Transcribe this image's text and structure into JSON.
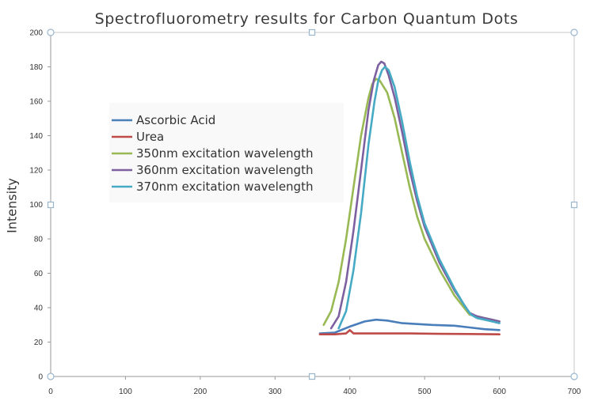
{
  "chart_data": {
    "type": "line",
    "title": "Spectrofluorometry results for Carbon Quantum Dots",
    "xlabel": "",
    "ylabel": "Intensity",
    "xlim": [
      0,
      700
    ],
    "ylim": [
      0,
      200
    ],
    "x_ticks": [
      0,
      100,
      200,
      300,
      400,
      500,
      600,
      700
    ],
    "y_ticks": [
      0,
      20,
      40,
      60,
      80,
      100,
      120,
      140,
      160,
      180,
      200
    ],
    "grid": false,
    "legend_position": "upper-left",
    "series": [
      {
        "name": "Ascorbic Acid",
        "color": "#4a7ebb",
        "points": [
          [
            360,
            25
          ],
          [
            380,
            25.5
          ],
          [
            400,
            29
          ],
          [
            420,
            32
          ],
          [
            435,
            33
          ],
          [
            450,
            32.5
          ],
          [
            470,
            31
          ],
          [
            490,
            30.5
          ],
          [
            510,
            30
          ],
          [
            540,
            29.5
          ],
          [
            560,
            28.5
          ],
          [
            580,
            27.5
          ],
          [
            600,
            27
          ]
        ]
      },
      {
        "name": "Urea",
        "color": "#be4b48",
        "points": [
          [
            360,
            24.5
          ],
          [
            380,
            24.5
          ],
          [
            395,
            25
          ],
          [
            400,
            27
          ],
          [
            405,
            25
          ],
          [
            420,
            25
          ],
          [
            450,
            25
          ],
          [
            480,
            25
          ],
          [
            520,
            24.8
          ],
          [
            560,
            24.7
          ],
          [
            600,
            24.5
          ]
        ]
      },
      {
        "name": "350nm excitation wavelength",
        "color": "#98b954",
        "points": [
          [
            365,
            30
          ],
          [
            375,
            38
          ],
          [
            385,
            55
          ],
          [
            395,
            80
          ],
          [
            405,
            110
          ],
          [
            415,
            140
          ],
          [
            425,
            162
          ],
          [
            430,
            170
          ],
          [
            435,
            173
          ],
          [
            440,
            172
          ],
          [
            450,
            165
          ],
          [
            460,
            150
          ],
          [
            470,
            130
          ],
          [
            480,
            110
          ],
          [
            490,
            93
          ],
          [
            500,
            80
          ],
          [
            520,
            62
          ],
          [
            540,
            47
          ],
          [
            560,
            36
          ],
          [
            570,
            35
          ],
          [
            580,
            34
          ],
          [
            590,
            33
          ],
          [
            600,
            32
          ]
        ]
      },
      {
        "name": "360nm excitation wavelength",
        "color": "#7d60a0",
        "points": [
          [
            375,
            28
          ],
          [
            385,
            35
          ],
          [
            395,
            55
          ],
          [
            405,
            85
          ],
          [
            415,
            120
          ],
          [
            425,
            155
          ],
          [
            432,
            172
          ],
          [
            438,
            181
          ],
          [
            442,
            183
          ],
          [
            446,
            182
          ],
          [
            452,
            175
          ],
          [
            460,
            162
          ],
          [
            470,
            142
          ],
          [
            480,
            120
          ],
          [
            490,
            102
          ],
          [
            500,
            87
          ],
          [
            520,
            66
          ],
          [
            540,
            50
          ],
          [
            560,
            37
          ],
          [
            570,
            35
          ],
          [
            580,
            34
          ],
          [
            590,
            33
          ],
          [
            600,
            32
          ]
        ]
      },
      {
        "name": "370nm excitation wavelength",
        "color": "#46aac5",
        "points": [
          [
            385,
            28
          ],
          [
            395,
            38
          ],
          [
            405,
            62
          ],
          [
            415,
            95
          ],
          [
            425,
            135
          ],
          [
            433,
            160
          ],
          [
            438,
            172
          ],
          [
            443,
            178
          ],
          [
            447,
            180
          ],
          [
            452,
            178
          ],
          [
            460,
            168
          ],
          [
            470,
            148
          ],
          [
            480,
            125
          ],
          [
            490,
            105
          ],
          [
            500,
            89
          ],
          [
            520,
            68
          ],
          [
            540,
            51
          ],
          [
            555,
            40
          ],
          [
            562,
            36
          ],
          [
            570,
            34
          ],
          [
            580,
            33
          ],
          [
            590,
            32
          ],
          [
            600,
            31
          ]
        ]
      }
    ]
  }
}
